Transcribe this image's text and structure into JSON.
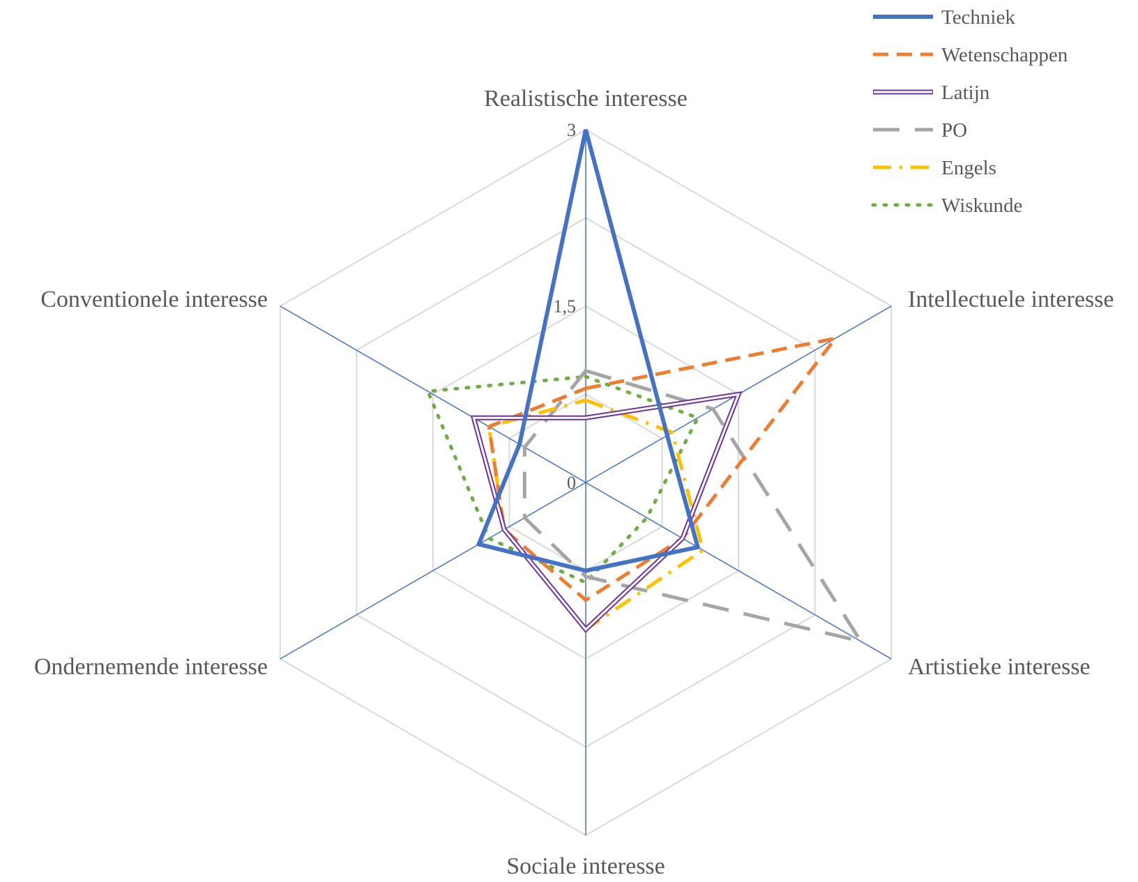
{
  "chart_data": {
    "type": "radar",
    "title": "",
    "axes": [
      "Realistische interesse",
      "Intellectuele interesse",
      "Artistieke interesse",
      "Sociale interesse",
      "Ondernemende interesse",
      "Conventionele interesse"
    ],
    "range": [
      0,
      3
    ],
    "tick_labels": [
      "0",
      "1,5",
      "3"
    ],
    "grid_levels": 4,
    "grid": true,
    "legend_position": "top-right",
    "series": [
      {
        "name": "Techniek",
        "values": [
          3.0,
          0.8,
          1.1,
          0.75,
          1.05,
          0.65
        ],
        "color": "#4472C4",
        "style": "solid"
      },
      {
        "name": "Wetenschappen",
        "values": [
          0.8,
          2.45,
          0.95,
          1.0,
          0.8,
          0.95
        ],
        "color": "#ED7D31",
        "style": "dashed"
      },
      {
        "name": "Latijn",
        "values": [
          0.55,
          1.5,
          0.95,
          1.25,
          0.8,
          1.1
        ],
        "color": "#7030A0",
        "style": "double"
      },
      {
        "name": "PO",
        "values": [
          0.95,
          1.25,
          2.7,
          0.8,
          0.6,
          0.6
        ],
        "color": "#A5A5A5",
        "style": "longdash"
      },
      {
        "name": "Engels",
        "values": [
          0.7,
          0.85,
          1.15,
          1.25,
          0.8,
          0.95
        ],
        "color": "#FFC000",
        "style": "dashdot"
      },
      {
        "name": "Wiskunde",
        "values": [
          0.9,
          1.1,
          0.6,
          0.85,
          0.95,
          1.55
        ],
        "color": "#70AD47",
        "style": "dotted"
      }
    ]
  }
}
